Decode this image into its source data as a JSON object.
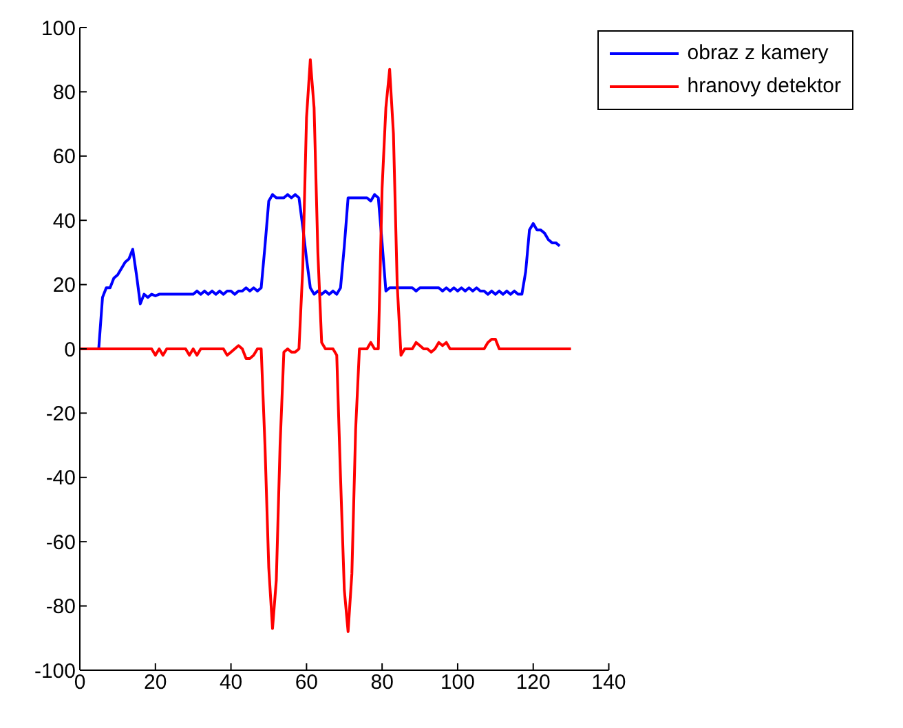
{
  "chart_data": {
    "type": "line",
    "xlim": [
      0,
      140
    ],
    "xticks": [
      0,
      20,
      40,
      60,
      80,
      100,
      120,
      140
    ],
    "ylim": [
      -100,
      100
    ],
    "yticks": [
      -100,
      -80,
      -60,
      -40,
      -20,
      0,
      20,
      40,
      60,
      80,
      100
    ],
    "grid": false,
    "legend": "top right",
    "marker": "none",
    "line_style": "solid",
    "series": [
      {
        "name": "obraz z kamery",
        "color": "#0000ff",
        "x": [
          1,
          5,
          6,
          7,
          8,
          9,
          10,
          11,
          12,
          13,
          14,
          15,
          16,
          17,
          18,
          19,
          20,
          21,
          30,
          31,
          32,
          33,
          34,
          35,
          36,
          37,
          38,
          39,
          40,
          41,
          42,
          43,
          44,
          45,
          46,
          47,
          48,
          49,
          50,
          51,
          52,
          53,
          54,
          55,
          56,
          57,
          58,
          59,
          60,
          61,
          62,
          63,
          64,
          65,
          66,
          67,
          68,
          69,
          70,
          71,
          76,
          77,
          78,
          79,
          80,
          81,
          82,
          88,
          89,
          90,
          95,
          96,
          97,
          98,
          99,
          100,
          101,
          102,
          103,
          104,
          105,
          106,
          107,
          108,
          109,
          110,
          111,
          112,
          113,
          114,
          115,
          116,
          117,
          118,
          119,
          120,
          121,
          122,
          123,
          124,
          125,
          126,
          127
        ],
        "values": [
          0,
          0,
          16,
          19,
          19,
          22,
          23,
          25,
          27,
          28,
          31,
          23,
          14,
          17,
          16,
          17,
          16.5,
          17,
          17,
          18,
          17,
          18,
          17,
          18,
          17,
          18,
          17,
          18,
          18,
          17,
          18,
          18,
          19,
          18,
          19,
          18,
          19,
          32,
          46,
          48,
          47,
          47,
          47,
          48,
          47,
          48,
          47,
          38,
          28,
          19,
          17,
          18,
          17,
          18,
          17,
          18,
          17,
          19,
          32,
          47,
          47,
          46,
          48,
          47,
          33,
          18,
          19,
          19,
          18,
          19,
          19,
          18,
          19,
          18,
          19,
          18,
          19,
          18,
          19,
          18,
          19,
          18,
          18,
          17,
          18,
          17,
          18,
          17,
          18,
          17,
          18,
          17,
          17,
          24,
          37,
          39,
          37,
          37,
          36,
          34,
          33,
          33,
          32
        ]
      },
      {
        "name": "hranovy detektor",
        "color": "#ff0000",
        "x": [
          0,
          19,
          20,
          21,
          22,
          23,
          28,
          29,
          30,
          31,
          32,
          38,
          39,
          40,
          41,
          42,
          43,
          44,
          45,
          46,
          47,
          48,
          49,
          50,
          51,
          52,
          53,
          54,
          55,
          56,
          57,
          58,
          59,
          60,
          61,
          62,
          63,
          64,
          65,
          66,
          67,
          68,
          69,
          70,
          71,
          72,
          73,
          74,
          75,
          76,
          77,
          78,
          79,
          80,
          81,
          82,
          83,
          84,
          85,
          86,
          87,
          88,
          89,
          90,
          91,
          92,
          93,
          94,
          95,
          96,
          97,
          98,
          107,
          108,
          109,
          110,
          111,
          130
        ],
        "values": [
          0,
          0,
          -2,
          0,
          -2,
          0,
          0,
          -2,
          0,
          -2,
          0,
          0,
          -2,
          -1,
          0,
          1,
          0,
          -3,
          -3,
          -2,
          0,
          0,
          -30,
          -68,
          -87,
          -72,
          -30,
          -1,
          0,
          -1,
          -1,
          0,
          25,
          72,
          90,
          75,
          30,
          2,
          0,
          0,
          0,
          -2,
          -40,
          -75,
          -88,
          -70,
          -25,
          0,
          0,
          0,
          2,
          0,
          0,
          50,
          75,
          87,
          67,
          20,
          -2,
          0,
          0,
          0,
          2,
          1,
          0,
          0,
          -1,
          0,
          2,
          1,
          2,
          0,
          0,
          2,
          3,
          3,
          0,
          0
        ]
      }
    ]
  }
}
